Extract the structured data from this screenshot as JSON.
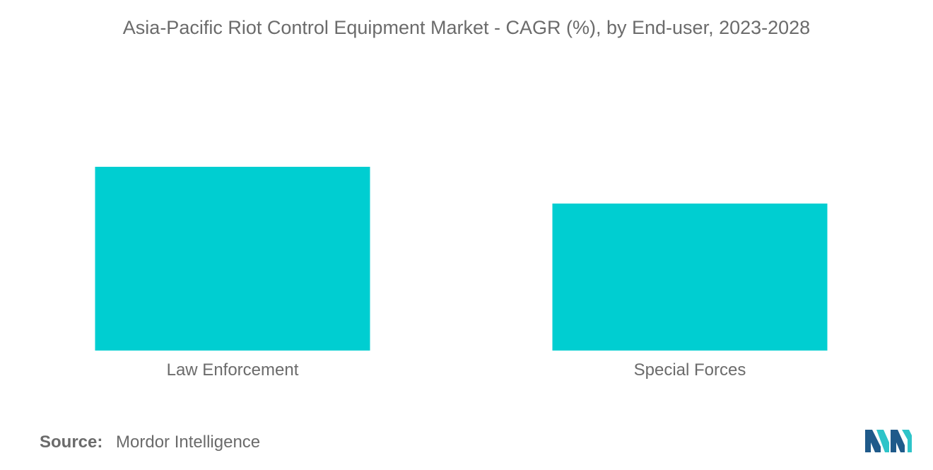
{
  "title": "Asia-Pacific Riot Control Equipment Market - CAGR (%), by End-user, 2023-2028",
  "source": {
    "label": "Source:",
    "value": "Mordor Intelligence"
  },
  "colors": {
    "bar": "#00CED1",
    "text": "#6b6b6b",
    "logo_dark": "#1f5a8a",
    "logo_light": "#2ec4c9"
  },
  "chart_data": {
    "type": "bar",
    "categories": [
      "Law Enforcement",
      "Special Forces"
    ],
    "values": [
      100,
      80
    ],
    "value_scale": "relative (no axis or data labels shown)",
    "ylim": [
      0,
      100
    ],
    "grid": false,
    "legend": "none"
  }
}
